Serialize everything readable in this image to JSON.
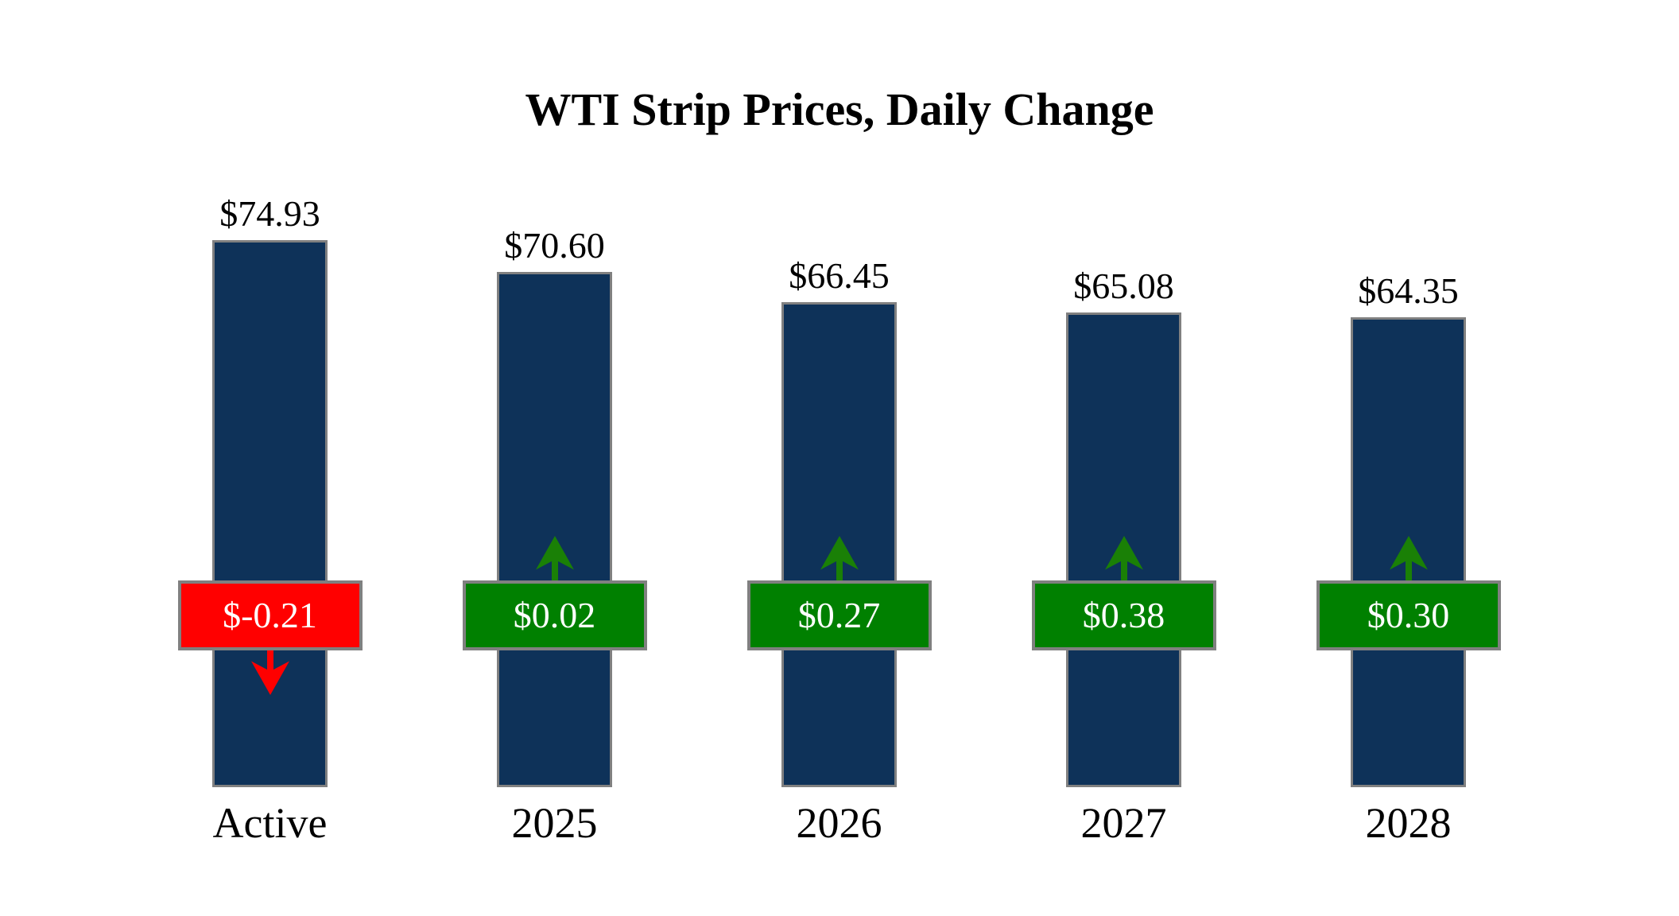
{
  "chart_data": {
    "type": "bar",
    "title": "WTI Strip Prices, Daily Change",
    "categories": [
      "Active",
      "2025",
      "2026",
      "2027",
      "2028"
    ],
    "series": [
      {
        "name": "Strip Price",
        "values": [
          74.93,
          70.6,
          66.45,
          65.08,
          64.35
        ],
        "labels": [
          "$74.93",
          "$70.60",
          "$66.45",
          "$65.08",
          "$64.35"
        ]
      },
      {
        "name": "Daily Change",
        "values": [
          -0.21,
          0.02,
          0.27,
          0.38,
          0.3
        ],
        "labels": [
          "$-0.21",
          "$0.02",
          "$0.27",
          "$0.38",
          "$0.30"
        ],
        "directions": [
          "down",
          "up",
          "up",
          "up",
          "up"
        ]
      }
    ],
    "ylim": [
      0,
      78
    ],
    "grid": false,
    "legend": false,
    "axes_visible": false,
    "colors": {
      "bar_fill": "#0e3259",
      "bar_border": "#808080",
      "up_badge": "#008000",
      "down_badge": "#ff0000",
      "up_arrow": "#1a8006",
      "down_arrow": "#ff0000",
      "badge_border": "#808080",
      "badge_text": "#ffffff",
      "label_text": "#000000",
      "title_text": "#000000"
    }
  }
}
